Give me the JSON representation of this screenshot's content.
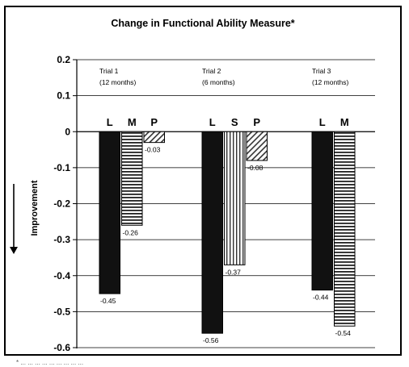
{
  "chart_data": {
    "type": "bar",
    "title": "Change in Functional Ability Measure*",
    "ylabel": "Improvement",
    "ylim": [
      -0.6,
      0.2
    ],
    "yticks": [
      0.2,
      0.1,
      0,
      -0.1,
      -0.2,
      -0.3,
      -0.4,
      -0.5,
      -0.6
    ],
    "ytick_labels": [
      "0.2",
      "0.1",
      "0",
      "-0.1",
      "-0.2",
      "-0.3",
      "-0.4",
      "-0.5",
      "-0.6"
    ],
    "grid": true,
    "groups": [
      {
        "name": "Trial 1",
        "duration": "(12 months)",
        "bars": [
          {
            "label": "L",
            "value": -0.45,
            "value_label": "-0.45",
            "pattern": "solid"
          },
          {
            "label": "M",
            "value": -0.26,
            "value_label": "-0.26",
            "pattern": "horizontal"
          },
          {
            "label": "P",
            "value": -0.03,
            "value_label": "-0.03",
            "pattern": "diagonal"
          }
        ]
      },
      {
        "name": "Trial 2",
        "duration": "(6 months)",
        "bars": [
          {
            "label": "L",
            "value": -0.56,
            "value_label": "-0.56",
            "pattern": "solid"
          },
          {
            "label": "S",
            "value": -0.37,
            "value_label": "-0.37",
            "pattern": "vertical"
          },
          {
            "label": "P",
            "value": -0.08,
            "value_label": "-0.08",
            "pattern": "diagonal"
          }
        ]
      },
      {
        "name": "Trial 3",
        "duration": "(12 months)",
        "bars": [
          {
            "label": "L",
            "value": -0.44,
            "value_label": "-0.44",
            "pattern": "solid"
          },
          {
            "label": "M",
            "value": -0.54,
            "value_label": "-0.54",
            "pattern": "horizontal"
          }
        ]
      }
    ],
    "footnote": "* ... ... ...   ... ... ... ... ... ..."
  }
}
